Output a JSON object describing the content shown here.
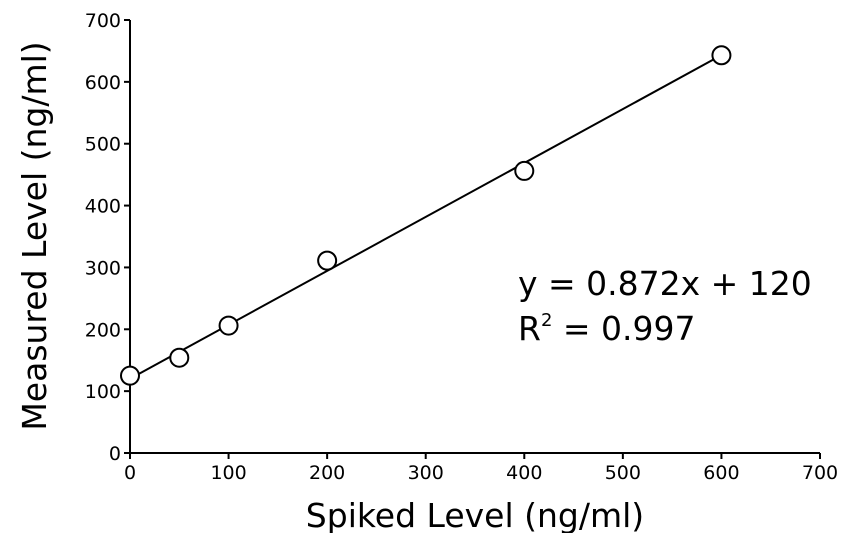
{
  "chart_data": {
    "type": "scatter",
    "title": "",
    "xlabel": "Spiked Level (ng/ml)",
    "ylabel": "Measured Level (ng/ml)",
    "xlim": [
      0,
      700
    ],
    "ylim": [
      0,
      700
    ],
    "xticks": [
      0,
      100,
      200,
      300,
      400,
      500,
      600,
      700
    ],
    "yticks": [
      0,
      100,
      200,
      300,
      400,
      500,
      600,
      700
    ],
    "grid": false,
    "points": [
      {
        "x": 0,
        "y": 125
      },
      {
        "x": 50,
        "y": 154
      },
      {
        "x": 100,
        "y": 206
      },
      {
        "x": 200,
        "y": 311
      },
      {
        "x": 400,
        "y": 456
      },
      {
        "x": 600,
        "y": 643
      }
    ],
    "fit": {
      "slope": 0.872,
      "intercept": 120,
      "x_range": [
        0,
        600
      ]
    },
    "annotations": {
      "equation": "y = 0.872x + 120",
      "r2_label": "R",
      "r2_exponent": "2",
      "r2_value": " = 0.997"
    }
  }
}
